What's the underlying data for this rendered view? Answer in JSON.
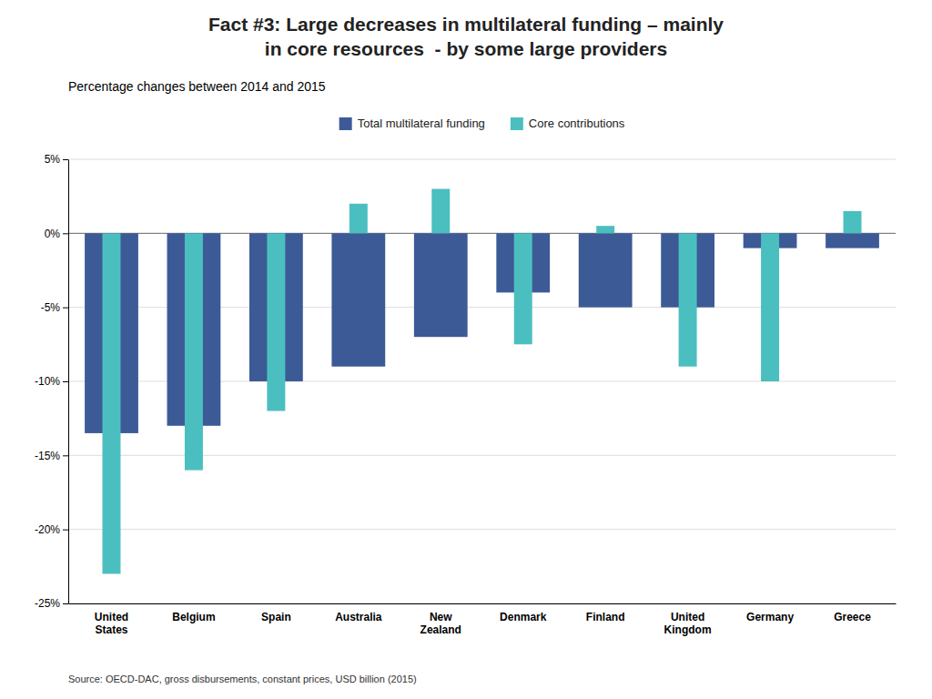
{
  "chart_data": {
    "type": "bar",
    "title": "Fact #3: Large decreases in multilateral funding – mainly\nin core resources  - by some large providers",
    "subtitle": "Percentage changes between 2014 and 2015",
    "source": "Source: OECD-DAC, gross disbursements, constant prices, USD billion (2015)",
    "categories": [
      "United\nStates",
      "Belgium",
      "Spain",
      "Australia",
      "New\nZealand",
      "Denmark",
      "Finland",
      "United\nKingdom",
      "Germany",
      "Greece"
    ],
    "series": [
      {
        "name": "Total multilateral funding",
        "color": "#3C5A96",
        "values": [
          -13.5,
          -13.0,
          -10.0,
          -9.0,
          -7.0,
          -4.0,
          -5.0,
          -5.0,
          -1.0,
          -1.0
        ]
      },
      {
        "name": "Core contributions",
        "color": "#4BBFBF",
        "values": [
          -23.0,
          -16.0,
          -12.0,
          2.0,
          3.0,
          -7.5,
          0.5,
          -9.0,
          -10.0,
          1.5
        ]
      }
    ],
    "ylim": [
      -25,
      5
    ],
    "yticks": [
      {
        "value": -25,
        "label": "-25%"
      },
      {
        "value": -20,
        "label": "-20%"
      },
      {
        "value": -15,
        "label": "-15%"
      },
      {
        "value": -10,
        "label": "-10%"
      },
      {
        "value": -5,
        "label": "-5%"
      },
      {
        "value": 0,
        "label": "0%"
      },
      {
        "value": 5,
        "label": "5%"
      }
    ],
    "grid": true,
    "legend": "top"
  }
}
